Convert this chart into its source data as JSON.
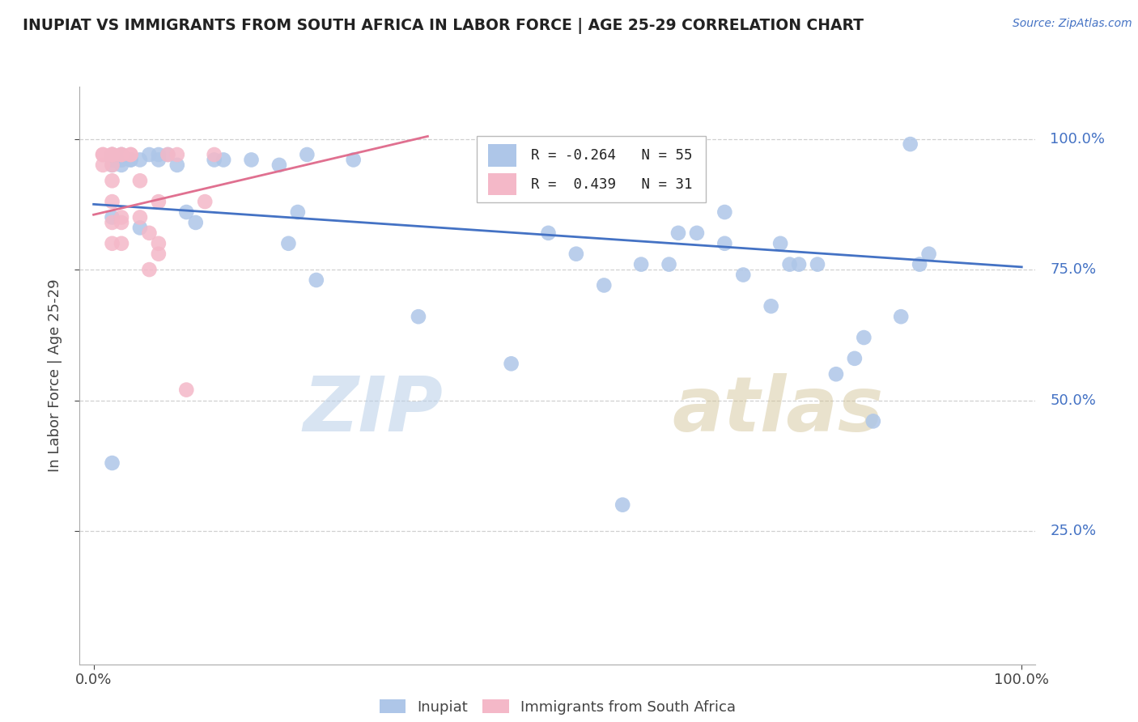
{
  "title": "INUPIAT VS IMMIGRANTS FROM SOUTH AFRICA IN LABOR FORCE | AGE 25-29 CORRELATION CHART",
  "source": "Source: ZipAtlas.com",
  "ylabel": "In Labor Force | Age 25-29",
  "watermark_zip": "ZIP",
  "watermark_atlas": "atlas",
  "blue_color": "#aec6e8",
  "pink_color": "#f4b8c8",
  "line_blue": "#4472c4",
  "line_pink": "#e07090",
  "legend_r1_label": "R = -0.264",
  "legend_n1_label": "N = 55",
  "legend_r2_label": "R =  0.439",
  "legend_n2_label": "N = 31",
  "inupiat_points": [
    [
      0.02,
      0.38
    ],
    [
      0.02,
      0.85
    ],
    [
      0.02,
      0.95
    ],
    [
      0.02,
      0.96
    ],
    [
      0.02,
      0.97
    ],
    [
      0.03,
      0.95
    ],
    [
      0.03,
      0.96
    ],
    [
      0.03,
      0.96
    ],
    [
      0.03,
      0.97
    ],
    [
      0.04,
      0.96
    ],
    [
      0.04,
      0.96
    ],
    [
      0.05,
      0.83
    ],
    [
      0.05,
      0.96
    ],
    [
      0.06,
      0.97
    ],
    [
      0.07,
      0.96
    ],
    [
      0.07,
      0.97
    ],
    [
      0.08,
      0.97
    ],
    [
      0.09,
      0.95
    ],
    [
      0.1,
      0.86
    ],
    [
      0.11,
      0.84
    ],
    [
      0.13,
      0.96
    ],
    [
      0.14,
      0.96
    ],
    [
      0.17,
      0.96
    ],
    [
      0.2,
      0.95
    ],
    [
      0.21,
      0.8
    ],
    [
      0.22,
      0.86
    ],
    [
      0.23,
      0.97
    ],
    [
      0.24,
      0.73
    ],
    [
      0.28,
      0.96
    ],
    [
      0.35,
      0.66
    ],
    [
      0.45,
      0.57
    ],
    [
      0.49,
      0.82
    ],
    [
      0.52,
      0.78
    ],
    [
      0.55,
      0.72
    ],
    [
      0.57,
      0.3
    ],
    [
      0.59,
      0.76
    ],
    [
      0.62,
      0.76
    ],
    [
      0.63,
      0.82
    ],
    [
      0.65,
      0.82
    ],
    [
      0.68,
      0.8
    ],
    [
      0.68,
      0.86
    ],
    [
      0.7,
      0.74
    ],
    [
      0.73,
      0.68
    ],
    [
      0.74,
      0.8
    ],
    [
      0.75,
      0.76
    ],
    [
      0.76,
      0.76
    ],
    [
      0.78,
      0.76
    ],
    [
      0.8,
      0.55
    ],
    [
      0.82,
      0.58
    ],
    [
      0.83,
      0.62
    ],
    [
      0.84,
      0.46
    ],
    [
      0.87,
      0.66
    ],
    [
      0.88,
      0.99
    ],
    [
      0.89,
      0.76
    ],
    [
      0.9,
      0.78
    ]
  ],
  "southafrica_points": [
    [
      0.01,
      0.95
    ],
    [
      0.01,
      0.97
    ],
    [
      0.01,
      0.97
    ],
    [
      0.02,
      0.8
    ],
    [
      0.02,
      0.84
    ],
    [
      0.02,
      0.88
    ],
    [
      0.02,
      0.92
    ],
    [
      0.02,
      0.95
    ],
    [
      0.02,
      0.97
    ],
    [
      0.02,
      0.97
    ],
    [
      0.02,
      0.97
    ],
    [
      0.02,
      0.97
    ],
    [
      0.03,
      0.8
    ],
    [
      0.03,
      0.84
    ],
    [
      0.03,
      0.85
    ],
    [
      0.03,
      0.97
    ],
    [
      0.03,
      0.97
    ],
    [
      0.04,
      0.97
    ],
    [
      0.04,
      0.97
    ],
    [
      0.05,
      0.85
    ],
    [
      0.05,
      0.92
    ],
    [
      0.06,
      0.75
    ],
    [
      0.06,
      0.82
    ],
    [
      0.07,
      0.78
    ],
    [
      0.07,
      0.8
    ],
    [
      0.07,
      0.88
    ],
    [
      0.08,
      0.97
    ],
    [
      0.09,
      0.97
    ],
    [
      0.1,
      0.52
    ],
    [
      0.12,
      0.88
    ],
    [
      0.13,
      0.97
    ]
  ],
  "blue_line_x": [
    0.0,
    1.0
  ],
  "blue_line_y": [
    0.875,
    0.755
  ],
  "pink_line_x": [
    0.0,
    0.36
  ],
  "pink_line_y": [
    0.855,
    1.005
  ],
  "xlim": [
    0.0,
    1.0
  ],
  "ylim": [
    0.0,
    1.05
  ],
  "yticks": [
    0.25,
    0.5,
    0.75,
    1.0
  ],
  "ytick_labels": [
    "25.0%",
    "50.0%",
    "75.0%",
    "100.0%"
  ],
  "xtick_labels": [
    "0.0%",
    "100.0%"
  ],
  "grid_color": "#d0d0d0"
}
